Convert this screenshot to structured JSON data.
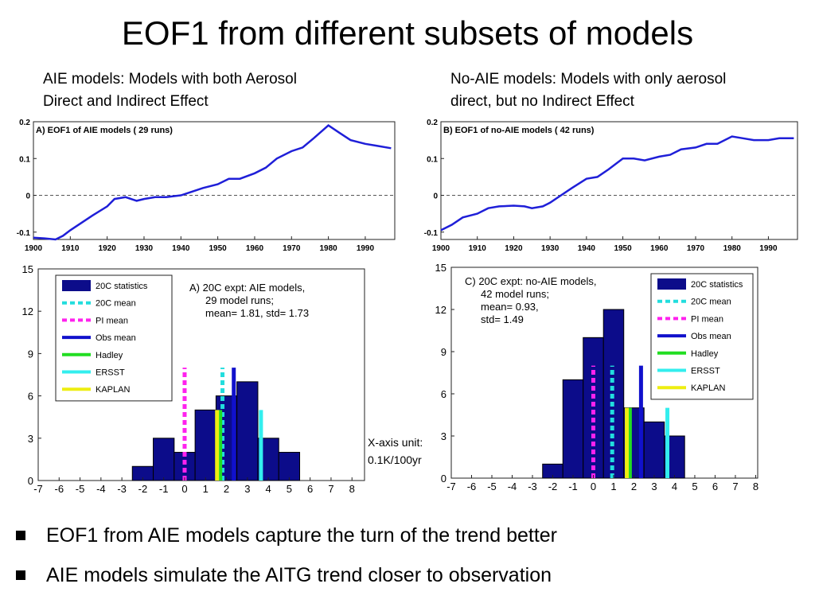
{
  "slide": {
    "title": "EOF1 from different subsets of models",
    "left_heading": [
      "AIE models: Models with both Aerosol",
      "Direct and Indirect Effect"
    ],
    "right_heading": [
      "No-AIE models: Models with only aerosol",
      "direct, but no Indirect Effect"
    ],
    "x_unit": [
      "X-axis unit:",
      "0.1K/100yr"
    ],
    "bullets": [
      "EOF1 from AIE models capture the turn of the trend better",
      "AIE models simulate the AITG trend closer to observation"
    ]
  },
  "chart_data": [
    {
      "type": "line",
      "title": "A) EOF1 of AIE models ( 29 runs)",
      "xlim": [
        1900,
        1998
      ],
      "ylim": [
        -0.12,
        0.2
      ],
      "xticks": [
        1900,
        1910,
        1920,
        1930,
        1940,
        1950,
        1960,
        1970,
        1980,
        1990
      ],
      "yticks": [
        -0.1,
        0,
        0.1,
        0.2
      ],
      "ytick_labels": [
        "-0.1",
        "0",
        "0.1",
        "0.2"
      ],
      "zero_line": "dashed",
      "color": "#1f1fd8",
      "series": [
        {
          "x": [
            1900,
            1903,
            1906,
            1908,
            1910,
            1913,
            1916,
            1920,
            1922,
            1925,
            1928,
            1930,
            1933,
            1936,
            1940,
            1943,
            1946,
            1950,
            1953,
            1956,
            1960,
            1963,
            1966,
            1970,
            1973,
            1976,
            1980,
            1983,
            1986,
            1990,
            1993,
            1997
          ],
          "y": [
            -0.115,
            -0.117,
            -0.12,
            -0.11,
            -0.095,
            -0.075,
            -0.055,
            -0.03,
            -0.01,
            -0.005,
            -0.015,
            -0.01,
            -0.005,
            -0.005,
            0.0,
            0.01,
            0.02,
            0.03,
            0.045,
            0.045,
            0.06,
            0.075,
            0.1,
            0.12,
            0.13,
            0.155,
            0.19,
            0.17,
            0.15,
            0.14,
            0.135,
            0.128
          ]
        }
      ]
    },
    {
      "type": "line",
      "title": "B) EOF1 of no-AIE models ( 42 runs)",
      "xlim": [
        1900,
        1998
      ],
      "ylim": [
        -0.12,
        0.2
      ],
      "xticks": [
        1900,
        1910,
        1920,
        1930,
        1940,
        1950,
        1960,
        1970,
        1980,
        1990
      ],
      "yticks": [
        -0.1,
        0,
        0.1,
        0.2
      ],
      "ytick_labels": [
        "-0.1",
        "0",
        "0.1",
        "0.2"
      ],
      "zero_line": "dashed",
      "color": "#1f1fd8",
      "series": [
        {
          "x": [
            1900,
            1903,
            1906,
            1908,
            1910,
            1913,
            1916,
            1920,
            1923,
            1925,
            1928,
            1930,
            1933,
            1936,
            1940,
            1943,
            1946,
            1950,
            1953,
            1956,
            1960,
            1963,
            1966,
            1970,
            1973,
            1976,
            1980,
            1983,
            1986,
            1990,
            1993,
            1997
          ],
          "y": [
            -0.095,
            -0.08,
            -0.06,
            -0.055,
            -0.05,
            -0.035,
            -0.03,
            -0.028,
            -0.03,
            -0.035,
            -0.03,
            -0.02,
            0.0,
            0.02,
            0.045,
            0.05,
            0.07,
            0.1,
            0.1,
            0.095,
            0.105,
            0.11,
            0.125,
            0.13,
            0.14,
            0.14,
            0.16,
            0.155,
            0.15,
            0.15,
            0.155,
            0.155
          ]
        }
      ]
    },
    {
      "type": "bar",
      "annotation": [
        "A) 20C expt: AIE models,",
        "29 model runs;",
        "mean= 1.81, std= 1.73"
      ],
      "xlim": [
        -7,
        8.6
      ],
      "ylim": [
        0,
        15
      ],
      "xticks": [
        -7,
        -6,
        -5,
        -4,
        -3,
        -2,
        -1,
        0,
        1,
        2,
        3,
        4,
        5,
        6,
        7,
        8
      ],
      "yticks": [
        0,
        3,
        6,
        9,
        12,
        15
      ],
      "bin_centers": [
        -2,
        -1,
        0,
        1,
        2,
        3,
        4,
        5
      ],
      "values": [
        1,
        3,
        2,
        5,
        6,
        7,
        3,
        2
      ],
      "lines": [
        {
          "name": "20C mean",
          "x": 1.81,
          "height": 8,
          "style": "dashed",
          "color": "#22dddd"
        },
        {
          "name": "PI mean",
          "x": 0,
          "height": 8,
          "style": "dashed",
          "color": "#ff22ee"
        },
        {
          "name": "Obs mean",
          "x": 2.35,
          "height": 8,
          "style": "solid",
          "color": "#1111cc"
        },
        {
          "name": "Hadley",
          "x": 1.7,
          "height": 5,
          "style": "solid",
          "color": "#22dd22"
        },
        {
          "name": "ERSST",
          "x": 3.65,
          "height": 5,
          "style": "solid",
          "color": "#33eeee"
        },
        {
          "name": "KAPLAN",
          "x": 1.55,
          "height": 5,
          "style": "solid",
          "color": "#eeee11"
        }
      ],
      "legend": [
        "20C statistics",
        "20C mean",
        "PI mean",
        "Obs mean",
        "Hadley",
        "ERSST",
        "KAPLAN"
      ],
      "legend_position": "top-left",
      "bar_color": "#0c0c8a"
    },
    {
      "type": "bar",
      "annotation": [
        "C) 20C expt: no-AIE models,",
        "42 model runs;",
        "mean= 0.93,",
        "std= 1.49"
      ],
      "xlim": [
        -7,
        8.1
      ],
      "ylim": [
        0,
        15
      ],
      "xticks": [
        -7,
        -6,
        -5,
        -4,
        -3,
        -2,
        -1,
        0,
        1,
        2,
        3,
        4,
        5,
        6,
        7,
        8
      ],
      "yticks": [
        0,
        3,
        6,
        9,
        12,
        15
      ],
      "bin_centers": [
        -2,
        -1,
        0,
        1,
        2,
        3,
        4
      ],
      "values": [
        1,
        7,
        10,
        12,
        5,
        4,
        3
      ],
      "lines": [
        {
          "name": "20C mean",
          "x": 0.93,
          "height": 8,
          "style": "dashed",
          "color": "#22dddd"
        },
        {
          "name": "PI mean",
          "x": 0,
          "height": 8,
          "style": "dashed",
          "color": "#ff22ee"
        },
        {
          "name": "Obs mean",
          "x": 2.35,
          "height": 8,
          "style": "solid",
          "color": "#1111cc"
        },
        {
          "name": "Hadley",
          "x": 1.8,
          "height": 5,
          "style": "solid",
          "color": "#22dd22"
        },
        {
          "name": "ERSST",
          "x": 3.65,
          "height": 5,
          "style": "solid",
          "color": "#33eeee"
        },
        {
          "name": "KAPLAN",
          "x": 1.65,
          "height": 5,
          "style": "solid",
          "color": "#eeee11"
        }
      ],
      "legend": [
        "20C statistics",
        "20C mean",
        "PI mean",
        "Obs mean",
        "Hadley",
        "ERSST",
        "KAPLAN"
      ],
      "legend_position": "top-right",
      "bar_color": "#0c0c8a"
    }
  ]
}
